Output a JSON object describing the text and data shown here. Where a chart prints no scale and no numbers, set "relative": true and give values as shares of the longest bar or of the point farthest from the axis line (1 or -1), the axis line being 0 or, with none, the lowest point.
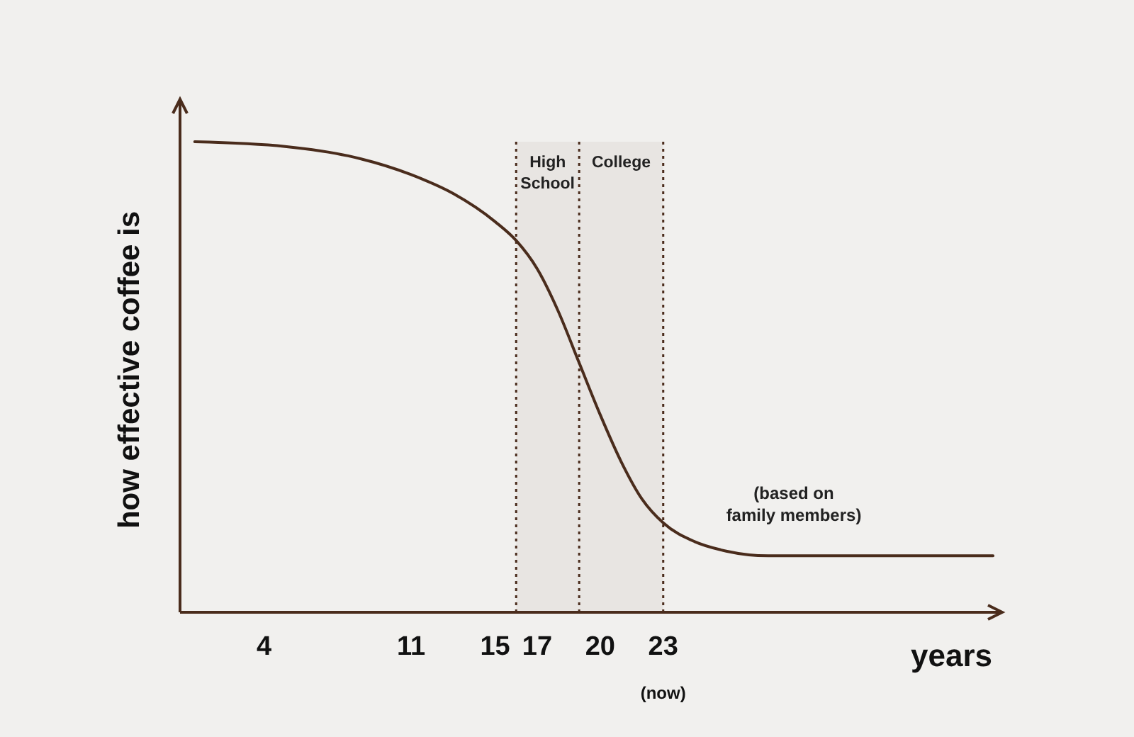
{
  "chart_data": {
    "type": "line",
    "relative": true,
    "xlabel": "years",
    "ylabel": "how effective coffee is",
    "x": [
      0.7,
      5,
      8,
      11,
      13,
      15,
      16,
      17,
      18,
      19,
      20,
      21,
      22,
      23,
      24.5,
      26,
      28,
      33,
      38.7
    ],
    "series": [
      {
        "color": "#4a2c1c",
        "values": [
          1,
          0.99,
          0.97,
          0.93,
          0.89,
          0.83,
          0.79,
          0.73,
          0.64,
          0.53,
          0.42,
          0.32,
          0.24,
          0.19,
          0.15,
          0.13,
          0.12,
          0.12,
          0.12
        ]
      }
    ],
    "xlim": [
      0,
      39
    ],
    "xticks": [
      4,
      11,
      15,
      17,
      20,
      {
        "value": 23,
        "label": "23$_{(now)}$"
      }
    ],
    "ref_lines": [
      {
        "axis": "x",
        "value": 16,
        "line_style": "dotted",
        "color": "#4a2c1c"
      },
      {
        "axis": "x",
        "value": 19,
        "line_style": "dotted",
        "color": "#4a2c1c"
      },
      {
        "axis": "x",
        "value": 23,
        "line_style": "dotted",
        "color": "#4a2c1c"
      }
    ],
    "bands": [
      {
        "axis": "x",
        "from": 16,
        "to": 19,
        "label": "High School"
      },
      {
        "axis": "x",
        "from": 19,
        "to": 23,
        "label": "College"
      }
    ],
    "annotations": [
      "(based on family members)"
    ],
    "grid": false,
    "marker": "none",
    "line_style": "solid"
  }
}
